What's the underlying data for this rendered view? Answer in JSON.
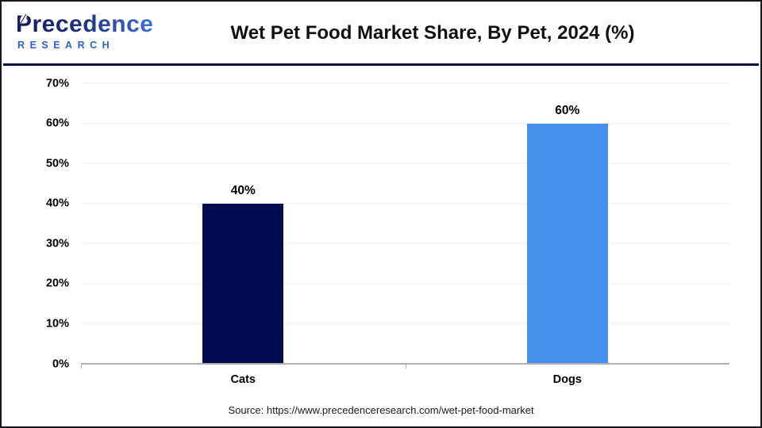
{
  "header": {
    "logo": {
      "line1": "Precedence",
      "line2": "RESEARCH"
    },
    "title": "Wet Pet Food Market Share, By Pet, 2024 (%)"
  },
  "chart_data": {
    "type": "bar",
    "title": "Wet Pet Food Market Share, By Pet, 2024 (%)",
    "categories": [
      "Cats",
      "Dogs"
    ],
    "values": [
      40,
      60
    ],
    "value_labels": [
      "40%",
      "60%"
    ],
    "bar_colors": [
      "#020b50",
      "#4691ee"
    ],
    "xlabel": "",
    "ylabel": "",
    "ylim": [
      0,
      70
    ],
    "yticks": [
      {
        "value": 0,
        "label": "0%"
      },
      {
        "value": 10,
        "label": "10%"
      },
      {
        "value": 20,
        "label": "20%"
      },
      {
        "value": 30,
        "label": "30%"
      },
      {
        "value": 40,
        "label": "40%"
      },
      {
        "value": 50,
        "label": "50%"
      },
      {
        "value": 60,
        "label": "60%"
      },
      {
        "value": 70,
        "label": "70%"
      }
    ],
    "grid": true,
    "legend": false
  },
  "colors": {
    "bar_cats": "#020b50",
    "bar_dogs": "#4691ee",
    "divider": "#040a40",
    "axis": "#b0b0b0",
    "gridline": "#ececec",
    "logo_blue": "#2c62d4"
  },
  "footer": {
    "source": "Source: https://www.precedenceresearch.com/wet-pet-food-market"
  }
}
